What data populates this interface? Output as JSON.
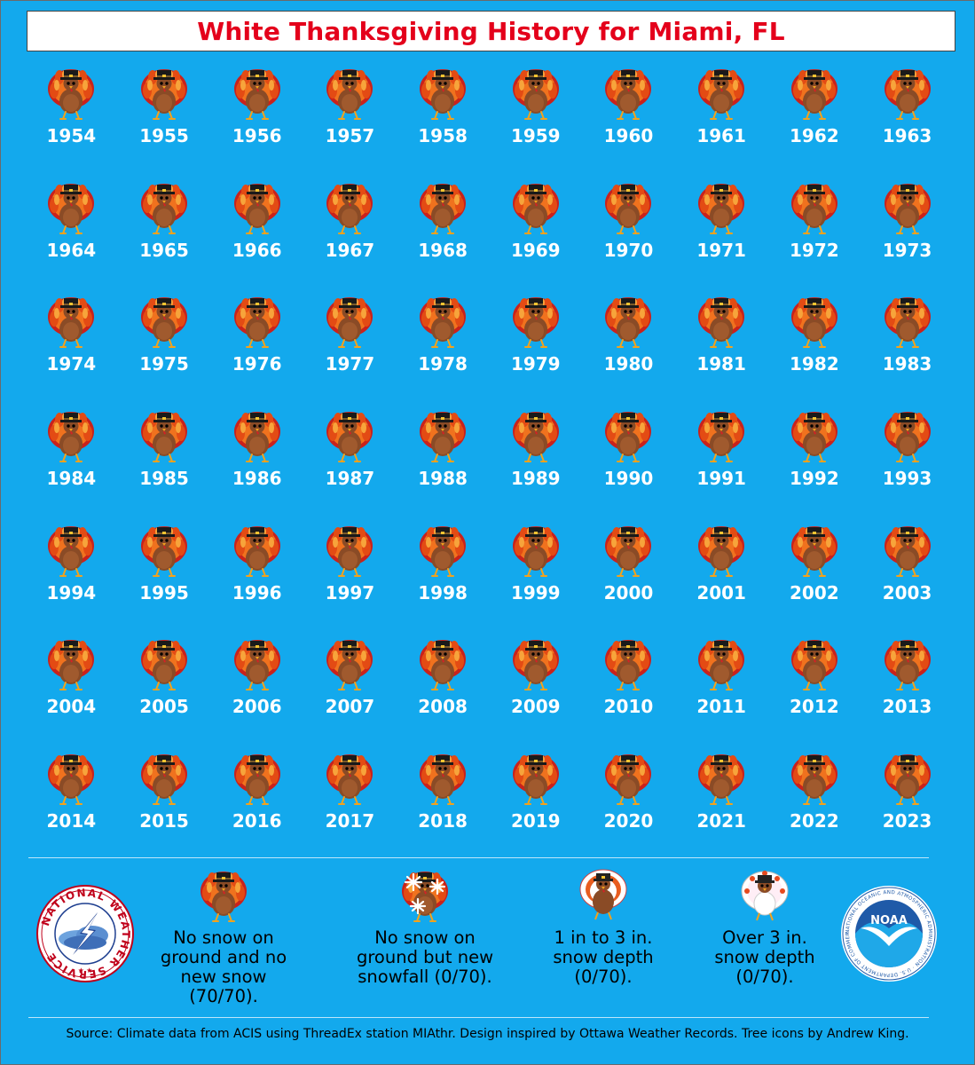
{
  "title": "White Thanksgiving History for Miami, FL",
  "years": [
    "1954",
    "1955",
    "1956",
    "1957",
    "1958",
    "1959",
    "1960",
    "1961",
    "1962",
    "1963",
    "1964",
    "1965",
    "1966",
    "1967",
    "1968",
    "1969",
    "1970",
    "1971",
    "1972",
    "1973",
    "1974",
    "1975",
    "1976",
    "1977",
    "1978",
    "1979",
    "1980",
    "1981",
    "1982",
    "1983",
    "1984",
    "1985",
    "1986",
    "1987",
    "1988",
    "1989",
    "1990",
    "1991",
    "1992",
    "1993",
    "1994",
    "1995",
    "1996",
    "1997",
    "1998",
    "1999",
    "2000",
    "2001",
    "2002",
    "2003",
    "2004",
    "2005",
    "2006",
    "2007",
    "2008",
    "2009",
    "2010",
    "2011",
    "2012",
    "2013",
    "2014",
    "2015",
    "2016",
    "2017",
    "2018",
    "2019",
    "2020",
    "2021",
    "2022",
    "2023"
  ],
  "year_icon": "turkey-icon",
  "legend": [
    {
      "icon": "turkey-icon",
      "line1": "No snow on",
      "line2": "ground and no",
      "line3": "new snow (70/70)."
    },
    {
      "icon": "turkey-snowflake-icon",
      "line1": "No snow on",
      "line2": "ground but new",
      "line3": "snowfall (0/70)."
    },
    {
      "icon": "turkey-light-snow-icon",
      "line1": "1 in to 3 in.",
      "line2": "snow depth",
      "line3": "(0/70)."
    },
    {
      "icon": "turkey-heavy-snow-icon",
      "line1": "Over 3 in.",
      "line2": "snow depth",
      "line3": "(0/70)."
    }
  ],
  "logos": {
    "nws_text": "NATIONAL WEATHER SERVICE",
    "noaa_text": "NOAA",
    "noaa_ring_text": "NATIONAL OCEANIC AND ATMOSPHERIC ADMINISTRATION · U.S. DEPARTMENT OF COMMERCE"
  },
  "source": "Source: Climate data from ACIS using ThreadEx station MIAthr. Design inspired by Ottawa Weather Records. Tree icons by Andrew King.",
  "colors": {
    "background": "#13a9ed",
    "title": "#e4001b",
    "year_text": "#ffffff"
  }
}
